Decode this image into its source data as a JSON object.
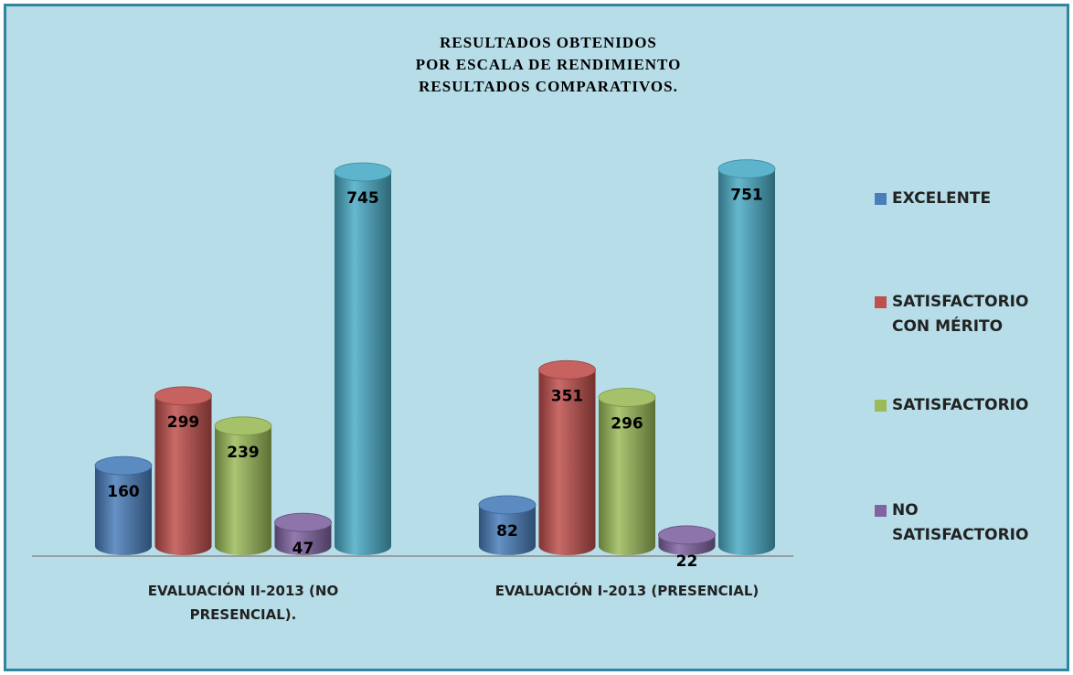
{
  "chart_data": {
    "type": "bar",
    "title_lines": [
      "RESULTADOS OBTENIDOS",
      "POR  ESCALA DE RENDIMIENTO",
      "RESULTADOS COMPARATIVOS."
    ],
    "categories": [
      "EVALUACIÓN II-2013 (NO PRESENCIAL).",
      "EVALUACIÓN I-2013 (PRESENCIAL)"
    ],
    "series": [
      {
        "name": "EXCELENTE",
        "color": "#4a7ebb",
        "values": [
          160,
          82
        ]
      },
      {
        "name": "SATISFACTORIO CON MÉRITO",
        "color": "#c0504d",
        "values": [
          299,
          351
        ]
      },
      {
        "name": "SATISFACTORIO",
        "color": "#9bbb59",
        "values": [
          239,
          296
        ]
      },
      {
        "name": "NO SATISFACTORIO",
        "color": "#8064a2",
        "values": [
          47,
          22
        ]
      },
      {
        "color": "#4bacc6",
        "values": [
          745,
          751
        ]
      }
    ]
  }
}
